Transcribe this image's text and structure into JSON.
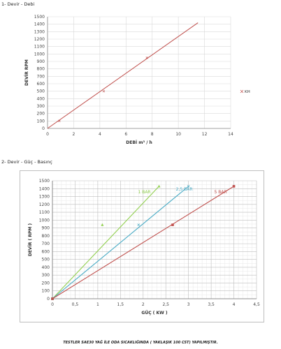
{
  "sections": {
    "first_title": "1- Devir - Debi",
    "second_title": "2- Devir - Güç - Basınç"
  },
  "footnote": "TESTLER SAE30 YAĞ İLE ODA SICAKLIĞINDA ( YAKLAŞIK 100 CST) YAPILMIŞTIR.",
  "chart_data": [
    {
      "type": "line",
      "title": "",
      "xlabel": "DEBİ m³ / h",
      "ylabel": "DEVİR RPM",
      "xlim": [
        0,
        14
      ],
      "ylim": [
        0,
        1500
      ],
      "xticks": [
        0,
        2,
        4,
        6,
        8,
        10,
        12,
        14
      ],
      "yticks": [
        0,
        100,
        200,
        300,
        400,
        500,
        600,
        700,
        800,
        900,
        1000,
        1100,
        1200,
        1300,
        1400,
        1500
      ],
      "grid": true,
      "legend_position": "right",
      "series": [
        {
          "name": "KHP1¼\"",
          "color": "#c0504d",
          "points": [
            [
              0,
              0
            ],
            [
              0.9,
              100
            ],
            [
              4.3,
              500
            ],
            [
              7.6,
              950
            ],
            [
              11.5,
              1420
            ]
          ]
        }
      ]
    },
    {
      "type": "line",
      "title": "",
      "xlabel": "GÜÇ ( KW )",
      "ylabel": "DEVİR ( RPM )",
      "xlim": [
        0,
        4.5
      ],
      "ylim": [
        0,
        1500
      ],
      "xticks": [
        "0",
        "0,5",
        "1",
        "1,5",
        "2",
        "2,5",
        "3",
        "3,5",
        "4",
        "4,5"
      ],
      "xtick_values": [
        0,
        0.5,
        1,
        1.5,
        2,
        2.5,
        3,
        3.5,
        4,
        4.5
      ],
      "yticks": [
        0,
        100,
        200,
        300,
        400,
        500,
        600,
        700,
        800,
        900,
        1000,
        1100,
        1200,
        1300,
        1400,
        1500
      ],
      "grid": true,
      "series": [
        {
          "name": "1 BAR",
          "color": "#92d050",
          "marker": "triangle",
          "points": [
            [
              0,
              0
            ],
            [
              1.1,
              940
            ],
            [
              2.35,
              1430
            ]
          ]
        },
        {
          "name": "2,5 BAR",
          "color": "#4bacc6",
          "marker": "x",
          "points": [
            [
              0,
              0
            ],
            [
              1.9,
              940
            ],
            [
              3.0,
              1430
            ]
          ]
        },
        {
          "name": "5 BAR",
          "color": "#c0504d",
          "marker": "square",
          "points": [
            [
              0,
              0
            ],
            [
              2.65,
              940
            ],
            [
              4.0,
              1430
            ]
          ]
        }
      ]
    }
  ]
}
